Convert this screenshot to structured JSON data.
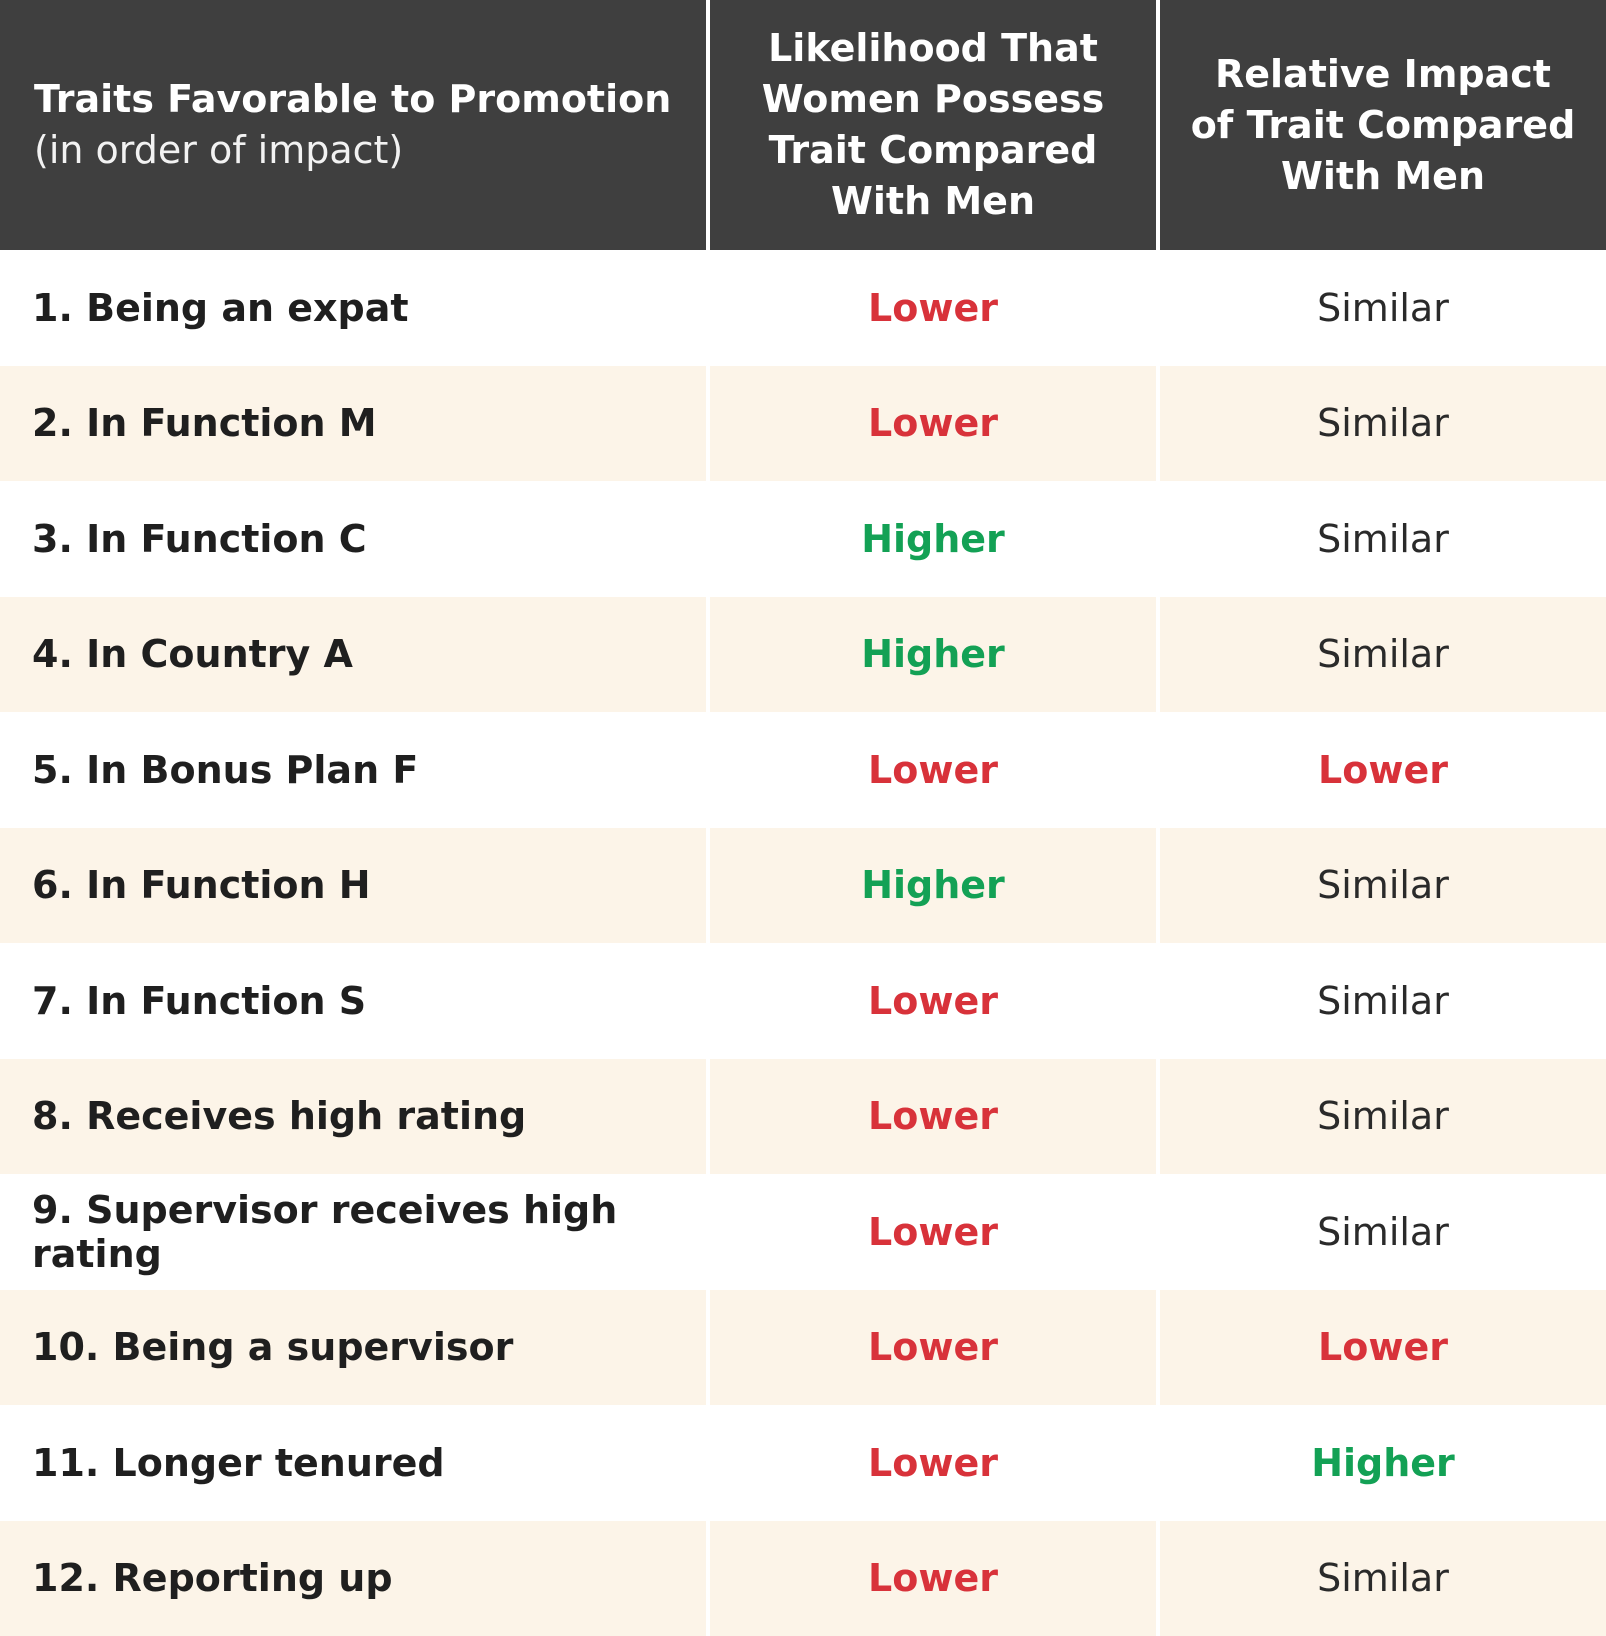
{
  "header": {
    "col1_title": "Traits Favorable to Promotion",
    "col1_subtitle": "(in order of impact)",
    "col2": "Likelihood That\nWomen Possess\nTrait Compared\nWith Men",
    "col3": "Relative Impact\nof Trait Compared\nWith Men"
  },
  "rows": [
    {
      "trait": "1. Being an expat",
      "likelihood": "Lower",
      "impact": "Similar"
    },
    {
      "trait": "2. In Function M",
      "likelihood": "Lower",
      "impact": "Similar"
    },
    {
      "trait": "3. In Function C",
      "likelihood": "Higher",
      "impact": "Similar"
    },
    {
      "trait": "4. In Country A",
      "likelihood": "Higher",
      "impact": "Similar"
    },
    {
      "trait": "5. In Bonus Plan F",
      "likelihood": "Lower",
      "impact": "Lower"
    },
    {
      "trait": "6. In Function H",
      "likelihood": "Higher",
      "impact": "Similar"
    },
    {
      "trait": "7. In Function S",
      "likelihood": "Lower",
      "impact": "Similar"
    },
    {
      "trait": "8. Receives high rating",
      "likelihood": "Lower",
      "impact": "Similar"
    },
    {
      "trait": "9. Supervisor receives high rating",
      "likelihood": "Lower",
      "impact": "Similar"
    },
    {
      "trait": "10.  Being a supervisor",
      "likelihood": "Lower",
      "impact": "Lower"
    },
    {
      "trait": "11. Longer tenured",
      "likelihood": "Lower",
      "impact": "Higher"
    },
    {
      "trait": "12. Reporting up",
      "likelihood": "Lower",
      "impact": "Similar"
    }
  ],
  "colors": {
    "header_bg": "#3f3f3f",
    "alt_row_bg": "#fcf4e8",
    "lower": "#d8323a",
    "higher": "#13a155",
    "similar": "#2a2a2a"
  }
}
